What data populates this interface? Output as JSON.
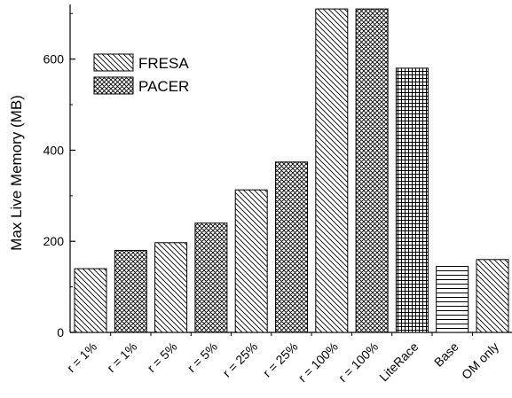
{
  "chart_data": {
    "type": "bar",
    "ylabel": "Max Live Memory (MB)",
    "xlabel": "",
    "ylim": [
      0,
      720
    ],
    "yticks": [
      0,
      200,
      400,
      600
    ],
    "minor_ytick_step": 100,
    "grid": false,
    "legend_position": "top-left",
    "categories": [
      "r = 1%",
      "r = 1%",
      "r = 5%",
      "r = 5%",
      "r = 25%",
      "r = 25%",
      "r = 100%",
      "r = 100%",
      "LiteRace",
      "Base",
      "OM only"
    ],
    "values": [
      140,
      180,
      197,
      240,
      313,
      374,
      710,
      710,
      580,
      145,
      160
    ],
    "patterns": [
      "diag",
      "cross",
      "diag",
      "cross",
      "diag",
      "cross",
      "diag",
      "cross",
      "grid",
      "hlines",
      "diag"
    ],
    "legend": [
      {
        "label": "FRESA",
        "pattern": "diag"
      },
      {
        "label": "PACER",
        "pattern": "cross"
      }
    ]
  }
}
